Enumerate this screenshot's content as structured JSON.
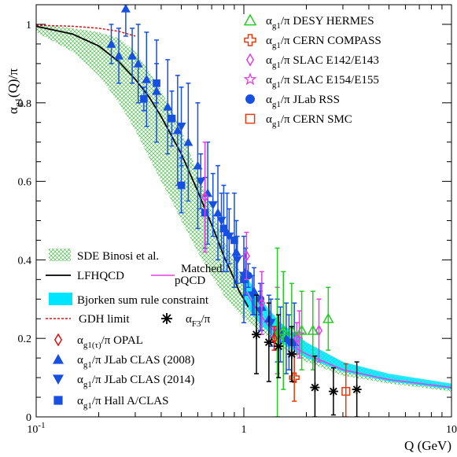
{
  "chart_data": {
    "type": "scatter",
    "xlabel": "Q (GeV)",
    "ylabel": "αg1(Q)/π",
    "xscale": "log",
    "xlim": [
      0.1,
      10
    ],
    "ylim": [
      0,
      1.05
    ],
    "x_tick_labels": [
      {
        "x": 0.1,
        "label": "10",
        "sup": "-1"
      },
      {
        "x": 1,
        "label": "1",
        "sup": ""
      },
      {
        "x": 10,
        "label": "10",
        "sup": ""
      }
    ],
    "y_tick_labels": [
      "0",
      "0.2",
      "0.4",
      "0.6",
      "0.8",
      "1"
    ],
    "colors": {
      "desy": "#22cc22",
      "compass": "#e23b10",
      "slac142": "#e040e0",
      "slac154": "#e040e0",
      "rss": "#1750e0",
      "smc": "#e23b10",
      "lfhqcd": "#000000",
      "matched": "#e040e0",
      "bjorken": "#00e5ff",
      "gdh": "#e01010",
      "sde": "#22bb22",
      "opal": "#e01010",
      "clas": "#1750e0",
      "f3": "#000000"
    },
    "legend_top": [
      {
        "key": "desy",
        "marker": "triangle-open",
        "label": "αg1/π DESY HERMES"
      },
      {
        "key": "compass",
        "marker": "cross-open",
        "label": "αg1/π CERN COMPASS"
      },
      {
        "key": "slac142",
        "marker": "diamond-open",
        "label": "αg1/π SLAC E142/E143"
      },
      {
        "key": "slac154",
        "marker": "star-open",
        "label": "αg1/π SLAC E154/E155"
      },
      {
        "key": "rss",
        "marker": "circle",
        "label": "αg1/π JLab RSS"
      },
      {
        "key": "smc",
        "marker": "square-open",
        "label": "αg1/π CERN SMC"
      }
    ],
    "legend_bottom": {
      "sde": "SDE Binosi et al.",
      "lfhqcd": "LFHQCD",
      "matched": "Matched pQCD",
      "bjorken": "Bjorken sum rule constraint",
      "gdh": "GDH limit",
      "f3": "αF3/π",
      "opal": "αg1(τ)/π OPAL",
      "clas2008": "αg1/π JLab CLAS (2008)",
      "clas2014": "αg1/π JLab CLAS (2014)",
      "halla": "αg1/π Hall A/CLAS"
    },
    "series": [
      {
        "name": "αg1/π JLab CLAS (2008)",
        "key": "clas",
        "marker": "triangle-up",
        "points": [
          [
            0.23,
            0.95,
            0.05
          ],
          [
            0.25,
            0.92,
            0.07
          ],
          [
            0.27,
            1.04,
            0.07
          ],
          [
            0.29,
            0.92,
            0.07
          ],
          [
            0.31,
            0.9,
            0.1
          ],
          [
            0.34,
            0.86,
            0.12
          ],
          [
            0.38,
            0.83,
            0.13
          ],
          [
            0.43,
            0.79,
            0.12
          ],
          [
            0.48,
            0.73,
            0.14
          ],
          [
            0.54,
            0.7,
            0.15
          ],
          [
            0.6,
            0.64,
            0.16
          ],
          [
            0.67,
            0.57,
            0.13
          ],
          [
            0.75,
            0.52,
            0.12
          ],
          [
            0.83,
            0.47,
            0.1
          ],
          [
            0.92,
            0.42,
            0.08
          ],
          [
            1.02,
            0.37,
            0.06
          ],
          [
            1.12,
            0.32,
            0.06
          ],
          [
            1.22,
            0.28,
            0.06
          ],
          [
            1.32,
            0.25,
            0.06
          ],
          [
            1.45,
            0.22,
            0.08
          ],
          [
            1.6,
            0.2,
            0.09
          ],
          [
            1.75,
            0.19,
            0.1
          ]
        ]
      },
      {
        "name": "αg1/π JLab CLAS (2014)",
        "key": "clas",
        "marker": "triangle-down",
        "points": [
          [
            0.5,
            0.74,
            0.1
          ],
          [
            0.62,
            0.6,
            0.07
          ],
          [
            0.71,
            0.54,
            0.08
          ],
          [
            0.78,
            0.5,
            0.07
          ],
          [
            0.85,
            0.46,
            0.07
          ],
          [
            0.93,
            0.4,
            0.06
          ],
          [
            1.0,
            0.36,
            0.05
          ],
          [
            1.1,
            0.31,
            0.05
          ],
          [
            1.2,
            0.27,
            0.05
          ],
          [
            1.35,
            0.24,
            0.06
          ],
          [
            1.5,
            0.21,
            0.07
          ],
          [
            1.65,
            0.19,
            0.07
          ]
        ]
      },
      {
        "name": "αg1/π Hall A/CLAS",
        "key": "clas",
        "marker": "square",
        "points": [
          [
            0.33,
            0.81,
            0.03
          ],
          [
            0.38,
            0.85,
            0.05
          ],
          [
            0.45,
            0.76,
            0.07
          ],
          [
            0.5,
            0.59,
            0.07
          ],
          [
            0.65,
            0.52,
            0.09
          ],
          [
            0.8,
            0.48,
            0.11
          ],
          [
            0.9,
            0.45,
            0.12
          ],
          [
            1.0,
            0.35,
            0.11
          ]
        ]
      },
      {
        "name": "αg1/π JLab RSS",
        "key": "rss",
        "marker": "circle",
        "points": [
          [
            1.05,
            0.36,
            0.03
          ],
          [
            1.2,
            0.3,
            0.04
          ]
        ]
      },
      {
        "name": "αg1/π SLAC E142/E143",
        "key": "slac142",
        "marker": "diamond-open",
        "points": [
          [
            0.65,
            0.56,
            0.14
          ],
          [
            1.03,
            0.41,
            0.06
          ],
          [
            1.22,
            0.29,
            0.08
          ],
          [
            1.45,
            0.22,
            0.11
          ],
          [
            1.8,
            0.2,
            0.04
          ],
          [
            2.3,
            0.22,
            0.08
          ]
        ]
      },
      {
        "name": "αg1/π SLAC E154/E155",
        "key": "slac154",
        "marker": "star-open",
        "points": [
          [
            1.85,
            0.21,
            0.06
          ]
        ]
      },
      {
        "name": "αg1/π DESY HERMES",
        "key": "desy",
        "marker": "triangle-open",
        "points": [
          [
            1.45,
            0.21,
            0.22
          ],
          [
            1.55,
            0.22,
            0.15
          ],
          [
            1.7,
            0.22,
            0.12
          ],
          [
            1.9,
            0.22,
            0.1
          ],
          [
            2.15,
            0.22,
            0.1
          ],
          [
            2.55,
            0.25,
            0.08
          ]
        ]
      },
      {
        "name": "αg1/π CERN COMPASS",
        "key": "compass",
        "marker": "cross-open",
        "points": [
          [
            1.75,
            0.1,
            0.06
          ]
        ]
      },
      {
        "name": "αg1/π CERN SMC",
        "key": "smc",
        "marker": "square-open",
        "points": [
          [
            3.1,
            0.065,
            0.07
          ]
        ]
      },
      {
        "name": "αg1(τ)/π OPAL",
        "key": "opal",
        "marker": "diamond-open",
        "points": [
          [
            1.4,
            0.2,
            0.03
          ]
        ]
      },
      {
        "name": "αF3/π",
        "key": "f3",
        "marker": "asterisk",
        "points": [
          [
            1.15,
            0.21,
            0.1
          ],
          [
            1.32,
            0.19,
            0.1
          ],
          [
            1.47,
            0.18,
            0.08
          ],
          [
            1.7,
            0.16,
            0.07
          ],
          [
            2.2,
            0.075,
            0.08
          ],
          [
            2.7,
            0.065,
            0.06
          ],
          [
            3.5,
            0.07,
            0.07
          ]
        ]
      }
    ],
    "lfhqcd_curve": [
      [
        0.1,
        0.995
      ],
      [
        0.15,
        0.975
      ],
      [
        0.2,
        0.945
      ],
      [
        0.25,
        0.905
      ],
      [
        0.3,
        0.86
      ],
      [
        0.35,
        0.815
      ],
      [
        0.4,
        0.765
      ],
      [
        0.45,
        0.715
      ],
      [
        0.5,
        0.67
      ],
      [
        0.55,
        0.62
      ],
      [
        0.6,
        0.575
      ],
      [
        0.65,
        0.53
      ],
      [
        0.7,
        0.49
      ],
      [
        0.75,
        0.45
      ],
      [
        0.8,
        0.41
      ],
      [
        0.85,
        0.38
      ],
      [
        0.9,
        0.35
      ],
      [
        0.95,
        0.32
      ],
      [
        1.0,
        0.3
      ],
      [
        1.05,
        0.28
      ]
    ],
    "matched_curve": [
      [
        1.0,
        0.33
      ],
      [
        1.1,
        0.29
      ],
      [
        1.3,
        0.235
      ],
      [
        1.6,
        0.19
      ],
      [
        2.0,
        0.16
      ],
      [
        3.0,
        0.12
      ],
      [
        5.0,
        0.095
      ],
      [
        10,
        0.075
      ]
    ],
    "gdh_curve": [
      [
        0.1,
        0.998
      ],
      [
        0.15,
        0.995
      ],
      [
        0.2,
        0.99
      ],
      [
        0.25,
        0.982
      ],
      [
        0.3,
        0.97
      ]
    ],
    "bjorken_band": [
      [
        1.0,
        0.37,
        0.29
      ],
      [
        1.2,
        0.3,
        0.235
      ],
      [
        1.5,
        0.24,
        0.19
      ],
      [
        2,
        0.19,
        0.15
      ],
      [
        3,
        0.14,
        0.115
      ],
      [
        5,
        0.11,
        0.09
      ],
      [
        10,
        0.085,
        0.07
      ]
    ],
    "sde_band": [
      [
        0.1,
        1.0,
        0.98
      ],
      [
        0.15,
        0.99,
        0.93
      ],
      [
        0.2,
        0.98,
        0.87
      ],
      [
        0.25,
        0.965,
        0.8
      ],
      [
        0.3,
        0.93,
        0.73
      ],
      [
        0.35,
        0.88,
        0.66
      ],
      [
        0.4,
        0.83,
        0.6
      ],
      [
        0.45,
        0.78,
        0.55
      ],
      [
        0.5,
        0.73,
        0.5
      ],
      [
        0.6,
        0.62,
        0.42
      ],
      [
        0.7,
        0.53,
        0.36
      ],
      [
        0.8,
        0.45,
        0.31
      ],
      [
        1.0,
        0.35,
        0.25
      ],
      [
        1.5,
        0.24,
        0.18
      ],
      [
        2,
        0.19,
        0.14
      ],
      [
        3,
        0.14,
        0.105
      ],
      [
        5,
        0.105,
        0.085
      ],
      [
        10,
        0.08,
        0.065
      ]
    ]
  }
}
